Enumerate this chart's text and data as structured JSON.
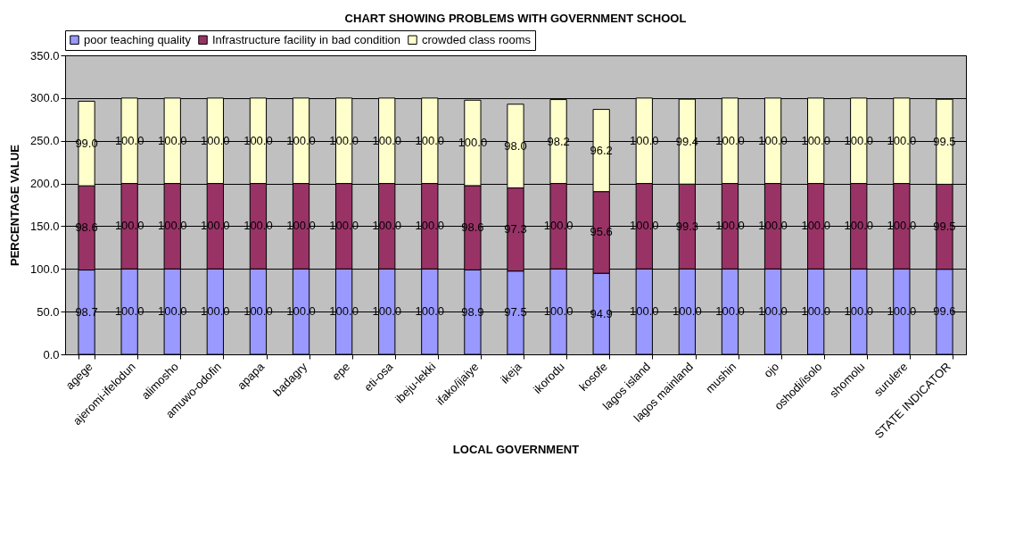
{
  "chart_data": {
    "type": "bar",
    "stacked": true,
    "title": "CHART SHOWING PROBLEMS WITH GOVERNMENT SCHOOL",
    "xlabel": "LOCAL GOVERNMENT",
    "ylabel": "PERCENTAGE VALUE",
    "categories": [
      "agege",
      "ajeromi-ifelodun",
      "alimosho",
      "amuwo-odofin",
      "apapa",
      "badagry",
      "epe",
      "eti-osa",
      "ibeju-lekki",
      "ifako/ijaiye",
      "ikeja",
      "ikorodu",
      "kosofe",
      "lagos island",
      "lagos mainland",
      "mushin",
      "ojo",
      "oshodi/isolo",
      "shomolu",
      "surulere",
      "STATE INDICATOR"
    ],
    "series": [
      {
        "name": "poor teaching quality",
        "color": "#9999ff",
        "values": [
          98.7,
          100,
          100,
          100,
          100,
          100,
          100,
          100,
          100,
          98.9,
          97.5,
          100,
          94.9,
          100,
          100,
          100,
          100,
          100,
          100,
          100,
          99.6
        ],
        "value_labels": [
          "98.7",
          "100.0",
          "100.0",
          "100.0",
          "100.0",
          "100.0",
          "100.0",
          "100.0",
          "100.0",
          "98.9",
          "97.5",
          "100.0",
          "94.9",
          "100.0",
          "100.0",
          "100.0",
          "100.0",
          "100.0",
          "100.0",
          "100.0",
          "99.6"
        ]
      },
      {
        "name": "Infrastructure facility in bad condition",
        "color": "#993366",
        "values": [
          98.6,
          100,
          100,
          100,
          100,
          100,
          100,
          100,
          100,
          98.6,
          97.3,
          100,
          95.6,
          100,
          99.3,
          100,
          100,
          100,
          100,
          100,
          99.5
        ],
        "value_labels": [
          "98.6",
          "100.0",
          "100.0",
          "100.0",
          "100.0",
          "100.0",
          "100.0",
          "100.0",
          "100.0",
          "98.6",
          "97.3",
          "100.0",
          "95.6",
          "100.0",
          "99.3",
          "100.0",
          "100.0",
          "100.0",
          "100.0",
          "100.0",
          "99.5"
        ]
      },
      {
        "name": "crowded class rooms",
        "color": "#ffffcc",
        "values": [
          99.0,
          100,
          100,
          100,
          100,
          100,
          100,
          100,
          100,
          100,
          98.0,
          98.2,
          96.2,
          100,
          99.4,
          100,
          100,
          100,
          100,
          100,
          99.5
        ],
        "value_labels": [
          "99.0",
          "100.0",
          "100.0",
          "100.0",
          "100.0",
          "100.0",
          "100.0",
          "100.0",
          "100.0",
          "100.0",
          "98.0",
          "98.2",
          "96.2",
          "100.0",
          "99.4",
          "100.0",
          "100.0",
          "100.0",
          "100.0",
          "100.0",
          "99.5"
        ]
      }
    ],
    "ylim": [
      0,
      350
    ],
    "yticks": [
      {
        "value": 0,
        "label": "0.0"
      },
      {
        "value": 50,
        "label": "50.0"
      },
      {
        "value": 100,
        "label": "100.0"
      },
      {
        "value": 150,
        "label": "150.0"
      },
      {
        "value": 200,
        "label": "200.0"
      },
      {
        "value": 250,
        "label": "250.0"
      },
      {
        "value": 300,
        "label": "300.0"
      },
      {
        "value": 350,
        "label": "350.0"
      }
    ],
    "grid": "y",
    "legend": "top"
  }
}
